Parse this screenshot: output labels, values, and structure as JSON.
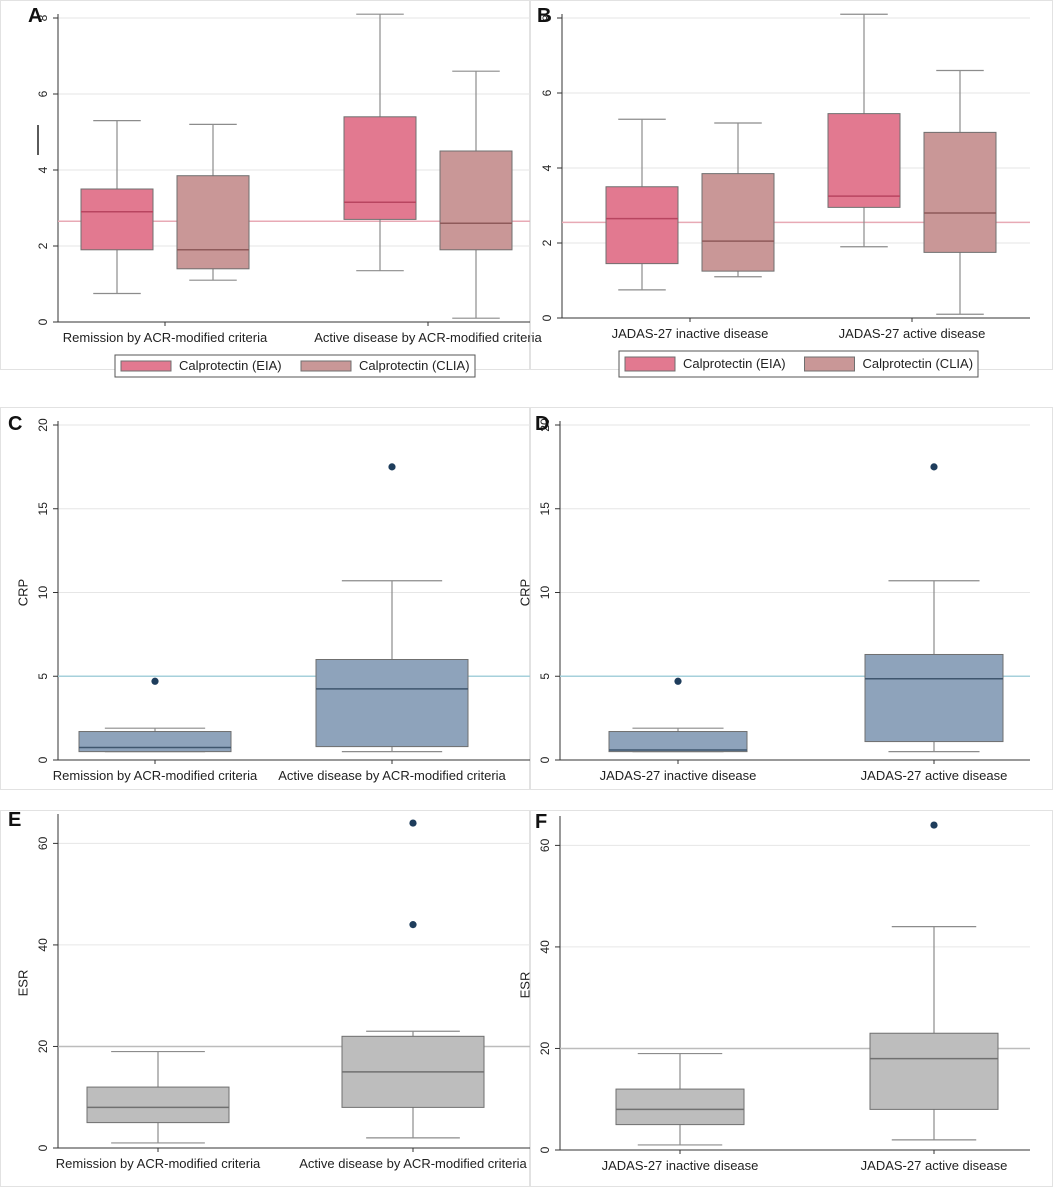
{
  "colors": {
    "eia": "#e27990",
    "eia_median": "#b84560",
    "clia": "#c99797",
    "clia_median": "#8e5a5a",
    "crp_box": "#8ea3bb",
    "crp_median": "#3f566e",
    "esr_box": "#bdbdbd",
    "esr_median": "#707070",
    "outlier": "#1e3d5c",
    "ref_pink": "#e8aab5",
    "ref_blue": "#a6d0db",
    "ref_gray": "#bcbcbc"
  },
  "chart_data": [
    {
      "panel": "A",
      "type": "box",
      "ylabel": "",
      "ylim": [
        0,
        8
      ],
      "yticks": [
        0,
        2,
        4,
        6,
        8
      ],
      "reference_line": 2.65,
      "categories": [
        "Remission by ACR-modified criteria",
        "Active disease by ACR-modified criteria"
      ],
      "legend": [
        "Calprotectin (EIA)",
        "Calprotectin (CLIA)"
      ],
      "boxes": [
        {
          "category": 0,
          "series": "Calprotectin (EIA)",
          "whisker_low": 0.75,
          "q1": 1.9,
          "median": 2.9,
          "q3": 3.5,
          "whisker_high": 5.3
        },
        {
          "category": 0,
          "series": "Calprotectin (CLIA)",
          "whisker_low": 1.1,
          "q1": 1.4,
          "median": 1.9,
          "q3": 3.85,
          "whisker_high": 5.2
        },
        {
          "category": 1,
          "series": "Calprotectin (EIA)",
          "whisker_low": 1.35,
          "q1": 2.7,
          "median": 3.15,
          "q3": 5.4,
          "whisker_high": 8.1
        },
        {
          "category": 1,
          "series": "Calprotectin (CLIA)",
          "whisker_low": 0.1,
          "q1": 1.9,
          "median": 2.6,
          "q3": 4.5,
          "whisker_high": 6.6
        }
      ],
      "outliers": []
    },
    {
      "panel": "B",
      "type": "box",
      "ylabel": "",
      "ylim": [
        0,
        8
      ],
      "yticks": [
        0,
        2,
        4,
        6,
        8
      ],
      "reference_line": 2.55,
      "categories": [
        "JADAS-27 inactive disease",
        "JADAS-27 active disease"
      ],
      "legend": [
        "Calprotectin (EIA)",
        "Calprotectin (CLIA)"
      ],
      "boxes": [
        {
          "category": 0,
          "series": "Calprotectin (EIA)",
          "whisker_low": 0.75,
          "q1": 1.45,
          "median": 2.65,
          "q3": 3.5,
          "whisker_high": 5.3
        },
        {
          "category": 0,
          "series": "Calprotectin (CLIA)",
          "whisker_low": 1.1,
          "q1": 1.25,
          "median": 2.05,
          "q3": 3.85,
          "whisker_high": 5.2
        },
        {
          "category": 1,
          "series": "Calprotectin (EIA)",
          "whisker_low": 1.9,
          "q1": 2.95,
          "median": 3.25,
          "q3": 5.45,
          "whisker_high": 8.1
        },
        {
          "category": 1,
          "series": "Calprotectin (CLIA)",
          "whisker_low": 0.1,
          "q1": 1.75,
          "median": 2.8,
          "q3": 4.95,
          "whisker_high": 6.6
        }
      ],
      "outliers": []
    },
    {
      "panel": "C",
      "type": "box",
      "ylabel": "CRP",
      "ylim": [
        0,
        20
      ],
      "yticks": [
        0,
        5,
        10,
        15,
        20
      ],
      "reference_line": 5,
      "categories": [
        "Remission by ACR-modified criteria",
        "Active disease by ACR-modified criteria"
      ],
      "legend": [],
      "boxes": [
        {
          "category": 0,
          "series": "CRP",
          "whisker_low": 0.5,
          "q1": 0.5,
          "median": 0.75,
          "q3": 1.7,
          "whisker_high": 1.9
        },
        {
          "category": 1,
          "series": "CRP",
          "whisker_low": 0.5,
          "q1": 0.8,
          "median": 4.25,
          "q3": 6.0,
          "whisker_high": 10.7
        }
      ],
      "outliers": [
        {
          "category": 0,
          "value": 4.7
        },
        {
          "category": 1,
          "value": 17.5
        }
      ]
    },
    {
      "panel": "D",
      "type": "box",
      "ylabel": "CRP",
      "ylim": [
        0,
        20
      ],
      "yticks": [
        0,
        5,
        10,
        15,
        20
      ],
      "reference_line": 5,
      "categories": [
        "JADAS-27 inactive disease",
        "JADAS-27 active disease"
      ],
      "legend": [],
      "boxes": [
        {
          "category": 0,
          "series": "CRP",
          "whisker_low": 0.5,
          "q1": 0.5,
          "median": 0.6,
          "q3": 1.7,
          "whisker_high": 1.9
        },
        {
          "category": 1,
          "series": "CRP",
          "whisker_low": 0.5,
          "q1": 1.1,
          "median": 4.85,
          "q3": 6.3,
          "whisker_high": 10.7
        }
      ],
      "outliers": [
        {
          "category": 0,
          "value": 4.7
        },
        {
          "category": 1,
          "value": 17.5
        }
      ]
    },
    {
      "panel": "E",
      "type": "box",
      "ylabel": "ESR",
      "ylim": [
        0,
        65
      ],
      "yticks": [
        0,
        20,
        40,
        60
      ],
      "reference_line": 20,
      "categories": [
        "Remission by ACR-modified criteria",
        "Active disease by ACR-modified criteria"
      ],
      "legend": [],
      "boxes": [
        {
          "category": 0,
          "series": "ESR",
          "whisker_low": 1,
          "q1": 5,
          "median": 8,
          "q3": 12,
          "whisker_high": 19
        },
        {
          "category": 1,
          "series": "ESR",
          "whisker_low": 2,
          "q1": 8,
          "median": 15,
          "q3": 22,
          "whisker_high": 23
        }
      ],
      "outliers": [
        {
          "category": 1,
          "value": 44
        },
        {
          "category": 1,
          "value": 64
        }
      ]
    },
    {
      "panel": "F",
      "type": "box",
      "ylabel": "ESR",
      "ylim": [
        0,
        65
      ],
      "yticks": [
        0,
        20,
        40,
        60
      ],
      "reference_line": 20,
      "categories": [
        "JADAS-27 inactive disease",
        "JADAS-27 active disease"
      ],
      "legend": [],
      "boxes": [
        {
          "category": 0,
          "series": "ESR",
          "whisker_low": 1,
          "q1": 5,
          "median": 8,
          "q3": 12,
          "whisker_high": 19
        },
        {
          "category": 1,
          "series": "ESR",
          "whisker_low": 2,
          "q1": 8,
          "median": 18,
          "q3": 23,
          "whisker_high": 44
        }
      ],
      "outliers": [
        {
          "category": 1,
          "value": 64
        }
      ]
    }
  ]
}
